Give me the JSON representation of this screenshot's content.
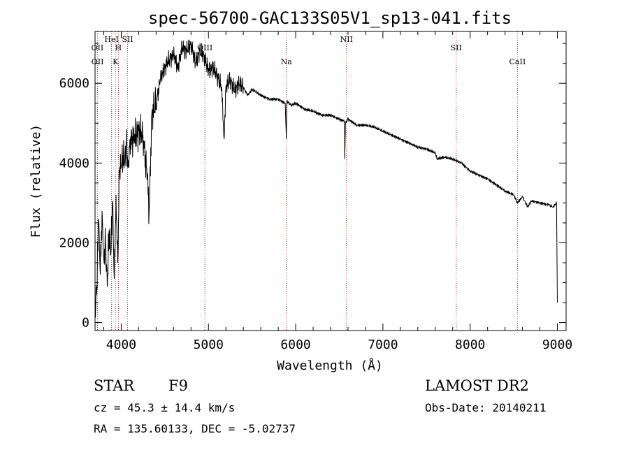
{
  "chart_data": {
    "type": "line",
    "title": "spec-56700-GAC133S05V1_sp13-041.fits",
    "xlabel": "Wavelength (Å)",
    "ylabel": "Flux (relative)",
    "xlim": [
      3700,
      9100
    ],
    "ylim": [
      -200,
      7300
    ],
    "x_ticks": [
      4000,
      5000,
      6000,
      7000,
      8000,
      9000
    ],
    "y_ticks": [
      0,
      2000,
      4000,
      6000
    ],
    "grid": false,
    "line_color": "#000000",
    "marker_color": "#b22222",
    "spectral_lines": [
      {
        "label": "OII",
        "wavelength": 3727
      },
      {
        "label": "OII",
        "wavelength": 3729
      },
      {
        "label": "HeI",
        "wavelength": 3889
      },
      {
        "label": "H",
        "wavelength": 3968
      },
      {
        "label": "K",
        "wavelength": 3934
      },
      {
        "label": "SII",
        "wavelength": 4072
      },
      {
        "label": "OIII",
        "wavelength": 4959
      },
      {
        "label": "Na",
        "wavelength": 5893
      },
      {
        "label": "NII",
        "wavelength": 6583
      },
      {
        "label": "SII",
        "wavelength": 7840
      },
      {
        "label": "CaII",
        "wavelength": 8542
      }
    ],
    "series": [
      {
        "x": [
          3700,
          3720,
          3740,
          3760,
          3780,
          3800,
          3820,
          3840,
          3860,
          3880,
          3900,
          3920,
          3940,
          3960,
          3980,
          4000,
          4020,
          4040,
          4060,
          4080,
          4100,
          4150,
          4200,
          4250,
          4300,
          4320,
          4350,
          4400,
          4450,
          4500,
          4550,
          4600,
          4650,
          4700,
          4750,
          4800,
          4850,
          4900,
          4950,
          5000,
          5050,
          5100,
          5150,
          5180,
          5200,
          5250,
          5300,
          5350,
          5400,
          5450,
          5500,
          5600,
          5700,
          5800,
          5880,
          5893,
          5900,
          5950,
          6000,
          6100,
          6200,
          6300,
          6400,
          6500,
          6560,
          6563,
          6570,
          6600,
          6700,
          6800,
          6900,
          7000,
          7100,
          7200,
          7300,
          7400,
          7500,
          7600,
          7620,
          7700,
          7800,
          7900,
          8000,
          8100,
          8200,
          8300,
          8400,
          8500,
          8540,
          8600,
          8660,
          8700,
          8800,
          8900,
          8950,
          8990,
          9000
        ],
        "values": [
          300,
          900,
          2600,
          1200,
          2800,
          1600,
          2000,
          900,
          2300,
          1700,
          3000,
          1100,
          3200,
          1500,
          3800,
          3900,
          4200,
          4000,
          4500,
          3900,
          4600,
          4600,
          4800,
          4700,
          3600,
          2800,
          5200,
          5500,
          6100,
          6400,
          6600,
          6700,
          6400,
          6900,
          6800,
          7000,
          6500,
          6800,
          6700,
          6300,
          6400,
          6200,
          5900,
          4600,
          5900,
          6100,
          5800,
          6000,
          5900,
          5700,
          5850,
          5700,
          5600,
          5600,
          5500,
          4600,
          5550,
          5450,
          5500,
          5350,
          5300,
          5200,
          5200,
          5100,
          5050,
          4100,
          5000,
          5100,
          4950,
          4950,
          4900,
          4800,
          4700,
          4600,
          4500,
          4400,
          4350,
          4250,
          4100,
          4150,
          4100,
          4000,
          3800,
          3700,
          3600,
          3450,
          3300,
          3200,
          3000,
          3150,
          2900,
          3050,
          3000,
          2950,
          2900,
          3000,
          500
        ]
      }
    ],
    "annotations": {
      "object": "STAR",
      "subclass": "F9",
      "survey": "LAMOST DR2",
      "cz": "cz = 45.3 ± 14.4 km/s",
      "obs_date": "Obs-Date: 20140211",
      "coords": "RA = 135.60133, DEC =  -5.02737"
    }
  }
}
